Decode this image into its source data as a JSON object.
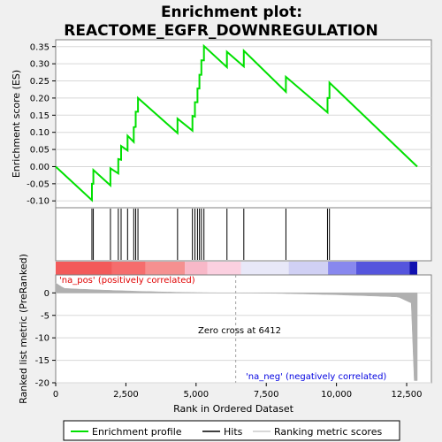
{
  "chart_data": {
    "type": "line",
    "title_line1": "Enrichment plot:",
    "title_line2": "REACTOME_EGFR_DOWNREGULATION",
    "xlabel": "Rank in Ordered Dataset",
    "ylabel_top": "Enrichment score (ES)",
    "ylabel_bottom": "Ranked list metric (PreRanked)",
    "x_range": [
      0,
      12877
    ],
    "x_ticks": [
      0,
      2500,
      5000,
      7500,
      10000,
      12500
    ],
    "x_tick_labels": [
      "0",
      "2,500",
      "5,000",
      "7,500",
      "10,000",
      "12,500"
    ],
    "es_ylim": [
      -0.12,
      0.37
    ],
    "es_ticks": [
      -0.1,
      -0.05,
      0.0,
      0.05,
      0.1,
      0.15,
      0.2,
      0.25,
      0.3,
      0.35
    ],
    "es_tick_labels": [
      "-0.10",
      "-0.05",
      "0.00",
      "0.05",
      "0.10",
      "0.15",
      "0.20",
      "0.25",
      "0.30",
      "0.35"
    ],
    "metric_ylim": [
      -20,
      4
    ],
    "metric_ticks": [
      0,
      -5,
      -10,
      -15,
      -20
    ],
    "metric_tick_labels": [
      "0",
      "-5",
      "-10",
      "-15",
      "-20"
    ],
    "hits": [
      1290,
      1340,
      1950,
      2230,
      2330,
      2560,
      2780,
      2850,
      2930,
      4340,
      4870,
      4960,
      5050,
      5120,
      5190,
      5280,
      6100,
      6700,
      8200,
      9680,
      9750
    ],
    "es_peaks": [
      -0.098,
      -0.05,
      -0.01,
      -0.055,
      -0.005,
      0.022,
      0.06,
      0.09,
      0.115,
      0.16,
      0.2,
      0.14,
      0.148,
      0.188,
      0.228,
      0.268,
      0.31,
      0.352,
      0.335,
      0.338,
      0.262,
      0.2,
      0.245,
      0.0
    ],
    "zero_cross": 6412,
    "zero_cross_label": "Zero cross at 6412",
    "na_pos_label": "'na_pos' (positively correlated)",
    "na_neg_label": "'na_neg' (negatively correlated)",
    "legend": [
      "Enrichment profile",
      "Hits",
      "Ranking metric scores"
    ],
    "colors": {
      "es_line": "#00e000",
      "hits": "#000000",
      "metric": "#b0b0b0",
      "na_pos_text": "#e00000",
      "na_neg_text": "#0000e0",
      "zero_line": "#a0a0a0"
    }
  }
}
